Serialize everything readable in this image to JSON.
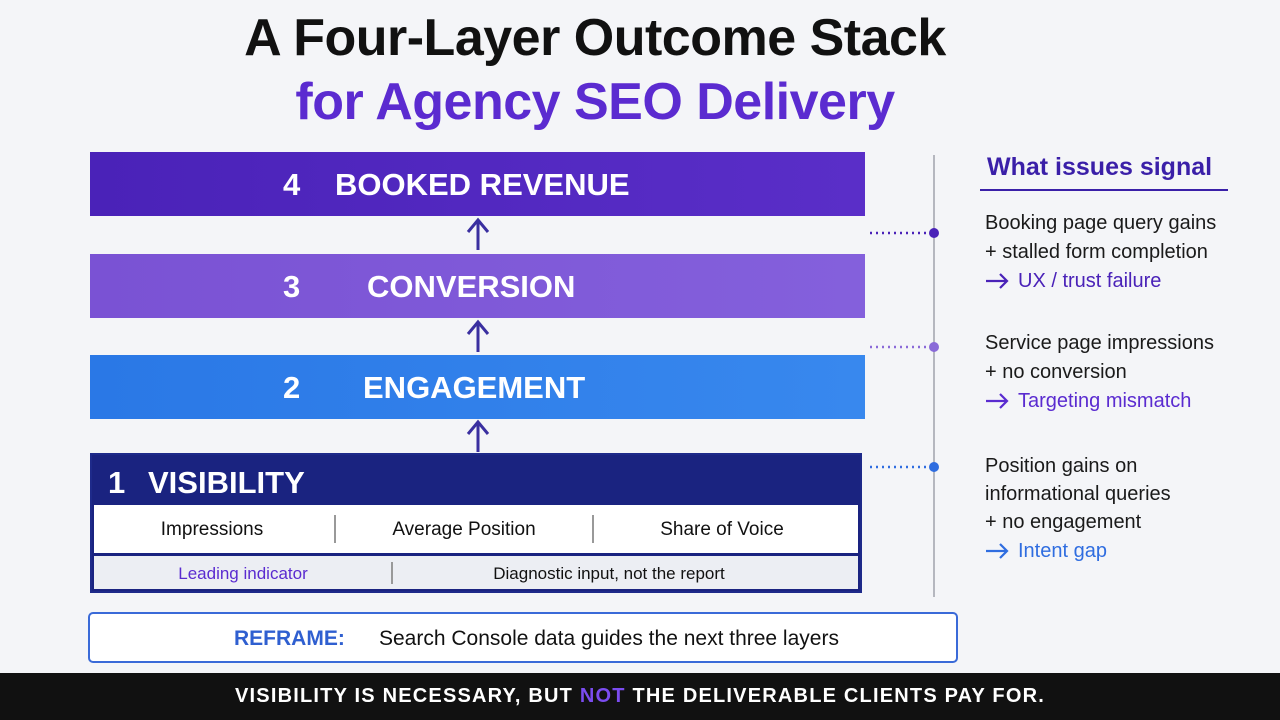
{
  "title": {
    "line1": "A Four-Layer Outcome Stack",
    "line2": "for Agency SEO Delivery"
  },
  "layers": [
    {
      "number": "4",
      "label": "BOOKED REVENUE"
    },
    {
      "number": "3",
      "label": "CONVERSION"
    },
    {
      "number": "2",
      "label": "ENGAGEMENT"
    },
    {
      "number": "1",
      "label": "VISIBILITY"
    }
  ],
  "visibility": {
    "metrics": [
      "Impressions",
      "Average Position",
      "Share of Voice"
    ],
    "notes": [
      "Leading indicator",
      "Diagnostic input, not the report"
    ]
  },
  "sidebar": {
    "heading": "What issues signal",
    "signals": [
      {
        "lines": [
          "Booking page query gains",
          "+ stalled form completion"
        ],
        "outcome": "UX / trust failure"
      },
      {
        "lines": [
          "Service page impressions",
          "+ no conversion"
        ],
        "outcome": "Targeting mismatch"
      },
      {
        "lines": [
          "Position gains on",
          "informational queries",
          "+ no engagement"
        ],
        "outcome": "Intent gap"
      }
    ]
  },
  "reframe": {
    "label": "REFRAME:",
    "text": "Search Console data guides the next three layers"
  },
  "footer": [
    "VISIBILITY IS NECESSARY, BUT",
    "NOT",
    "THE DELIVERABLE CLIENTS PAY FOR."
  ]
}
